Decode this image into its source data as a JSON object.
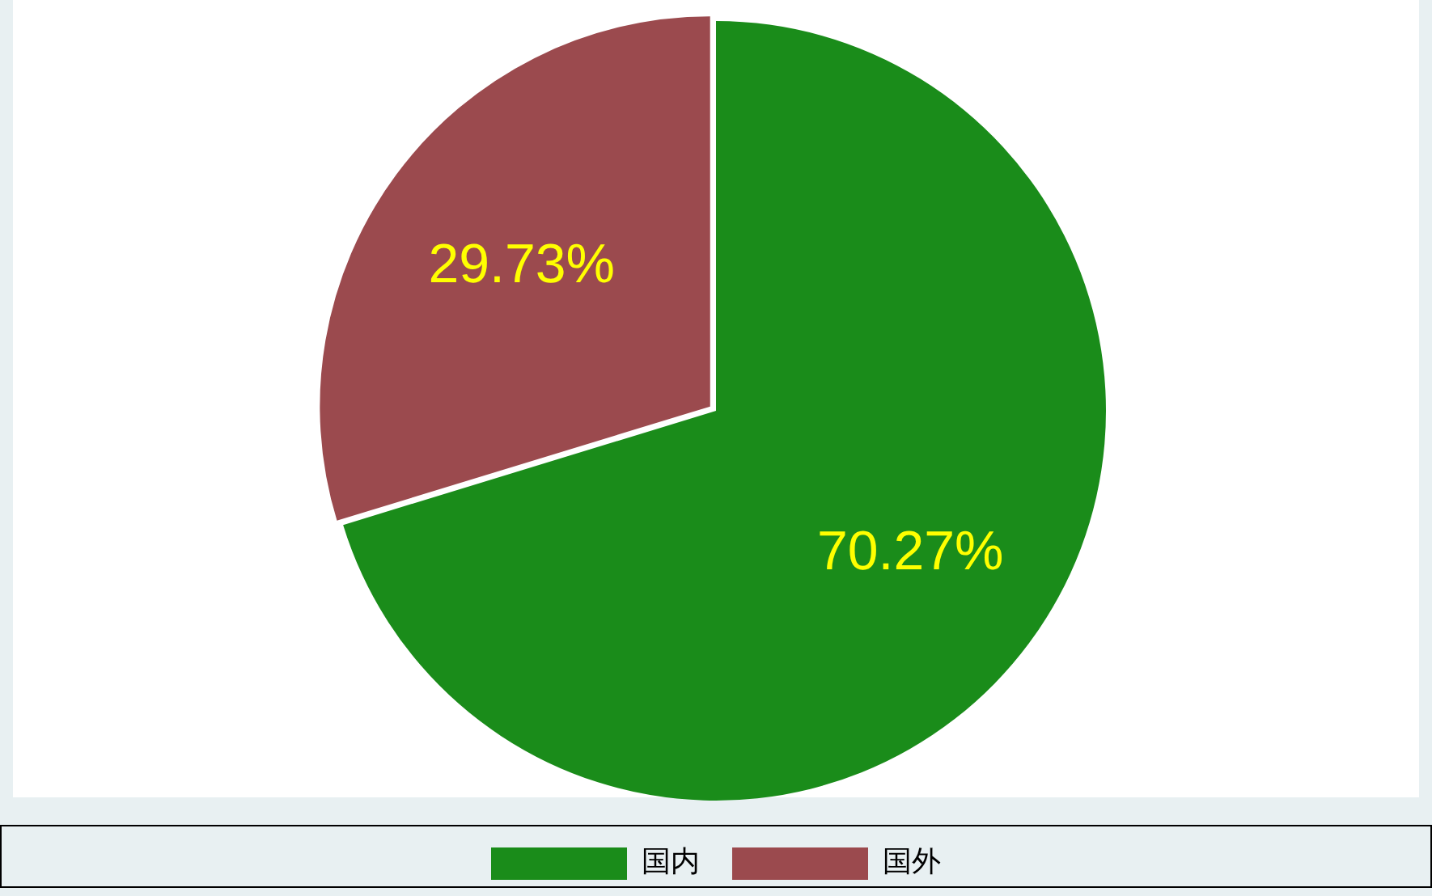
{
  "chart_data": {
    "type": "pie",
    "categories": [
      "国内",
      "国外"
    ],
    "values": [
      70.27,
      29.73
    ],
    "colors": [
      "#1a8c1a",
      "#9b4a4e"
    ],
    "value_labels": [
      "70.27%",
      "29.73%"
    ],
    "legend": "bottom"
  }
}
